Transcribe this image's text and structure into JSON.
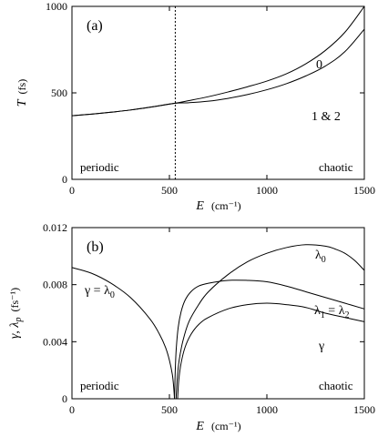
{
  "chart_data": [
    {
      "type": "line",
      "panel_label": "(a)",
      "xlabel": "E",
      "xunit": "(cm⁻¹)",
      "ylabel": "T",
      "yunit": "(fs)",
      "xlim": [
        0,
        1500
      ],
      "ylim": [
        0,
        1000
      ],
      "xticks": [
        "0",
        "500",
        "1000",
        "1500"
      ],
      "yticks": [
        "0",
        "500",
        "1000"
      ],
      "vline_x": 530,
      "annotations": {
        "left_region": "periodic",
        "right_region": "chaotic",
        "series0_label": "0",
        "series1_label": "1 & 2"
      },
      "series": [
        {
          "name": "0",
          "x": [
            0,
            100,
            200,
            300,
            400,
            530,
            600,
            700,
            800,
            900,
            1000,
            1100,
            1200,
            1300,
            1400,
            1500
          ],
          "y": [
            368,
            377,
            388,
            401,
            417,
            440,
            455,
            478,
            505,
            535,
            568,
            610,
            668,
            745,
            850,
            1000
          ]
        },
        {
          "name": "1 & 2",
          "x": [
            0,
            100,
            200,
            300,
            400,
            530,
            600,
            700,
            800,
            900,
            1000,
            1100,
            1200,
            1300,
            1400,
            1500
          ],
          "y": [
            368,
            377,
            388,
            401,
            417,
            440,
            443,
            452,
            468,
            490,
            518,
            553,
            598,
            655,
            738,
            868
          ]
        }
      ]
    },
    {
      "type": "line",
      "panel_label": "(b)",
      "xlabel": "E",
      "xunit": "(cm⁻¹)",
      "ylabel": "γ, λ",
      "ylabel_sub": "p",
      "yunit": "(fs⁻¹)",
      "xlim": [
        0,
        1500
      ],
      "ylim": [
        0,
        0.012
      ],
      "xticks": [
        "0",
        "500",
        "1000",
        "1500"
      ],
      "yticks": [
        "0",
        "0.004",
        "0.008",
        "0.012"
      ],
      "annotations": {
        "left_region": "periodic",
        "right_region": "chaotic",
        "left_curve_label": "γ = λ",
        "left_curve_label_sub": "0",
        "lambda0_label": "λ",
        "lambda0_sub": "0",
        "lambda12_label_a": "λ",
        "lambda12_sub_a": "1",
        "lambda12_mid": " = λ",
        "lambda12_sub_b": "2",
        "gamma_label": "γ"
      },
      "series": [
        {
          "name": "γ = λ0",
          "x": [
            0,
            100,
            200,
            300,
            400,
            450,
            480,
            500,
            515,
            522,
            526
          ],
          "y": [
            0.0092,
            0.0088,
            0.0081,
            0.0071,
            0.0056,
            0.0045,
            0.0036,
            0.0027,
            0.0017,
            0.0008,
            0.0
          ]
        },
        {
          "name": "λ0",
          "x": [
            534,
            540,
            550,
            570,
            600,
            650,
            700,
            800,
            900,
            1000,
            1100,
            1200,
            1300,
            1350,
            1400,
            1450,
            1500
          ],
          "y": [
            0.0,
            0.0014,
            0.0027,
            0.0041,
            0.0054,
            0.0066,
            0.0075,
            0.0087,
            0.0096,
            0.0102,
            0.0106,
            0.0108,
            0.0107,
            0.0105,
            0.0102,
            0.0097,
            0.009
          ]
        },
        {
          "name": "λ1 = λ2",
          "x": [
            526,
            530,
            535,
            545,
            560,
            580,
            610,
            650,
            700,
            800,
            900,
            1000,
            1100,
            1200,
            1300,
            1400,
            1500
          ],
          "y": [
            0.0,
            0.002,
            0.0035,
            0.005,
            0.0061,
            0.0069,
            0.0075,
            0.0079,
            0.0081,
            0.0083,
            0.0083,
            0.0082,
            0.0079,
            0.0075,
            0.0071,
            0.0067,
            0.0063
          ]
        },
        {
          "name": "γ",
          "x": [
            542,
            548,
            560,
            580,
            610,
            650,
            700,
            800,
            900,
            1000,
            1100,
            1200,
            1300,
            1400,
            1500
          ],
          "y": [
            0.0,
            0.0013,
            0.0025,
            0.0036,
            0.0045,
            0.0052,
            0.0057,
            0.0063,
            0.0066,
            0.0067,
            0.0066,
            0.0064,
            0.006,
            0.0057,
            0.0054
          ]
        }
      ]
    }
  ]
}
